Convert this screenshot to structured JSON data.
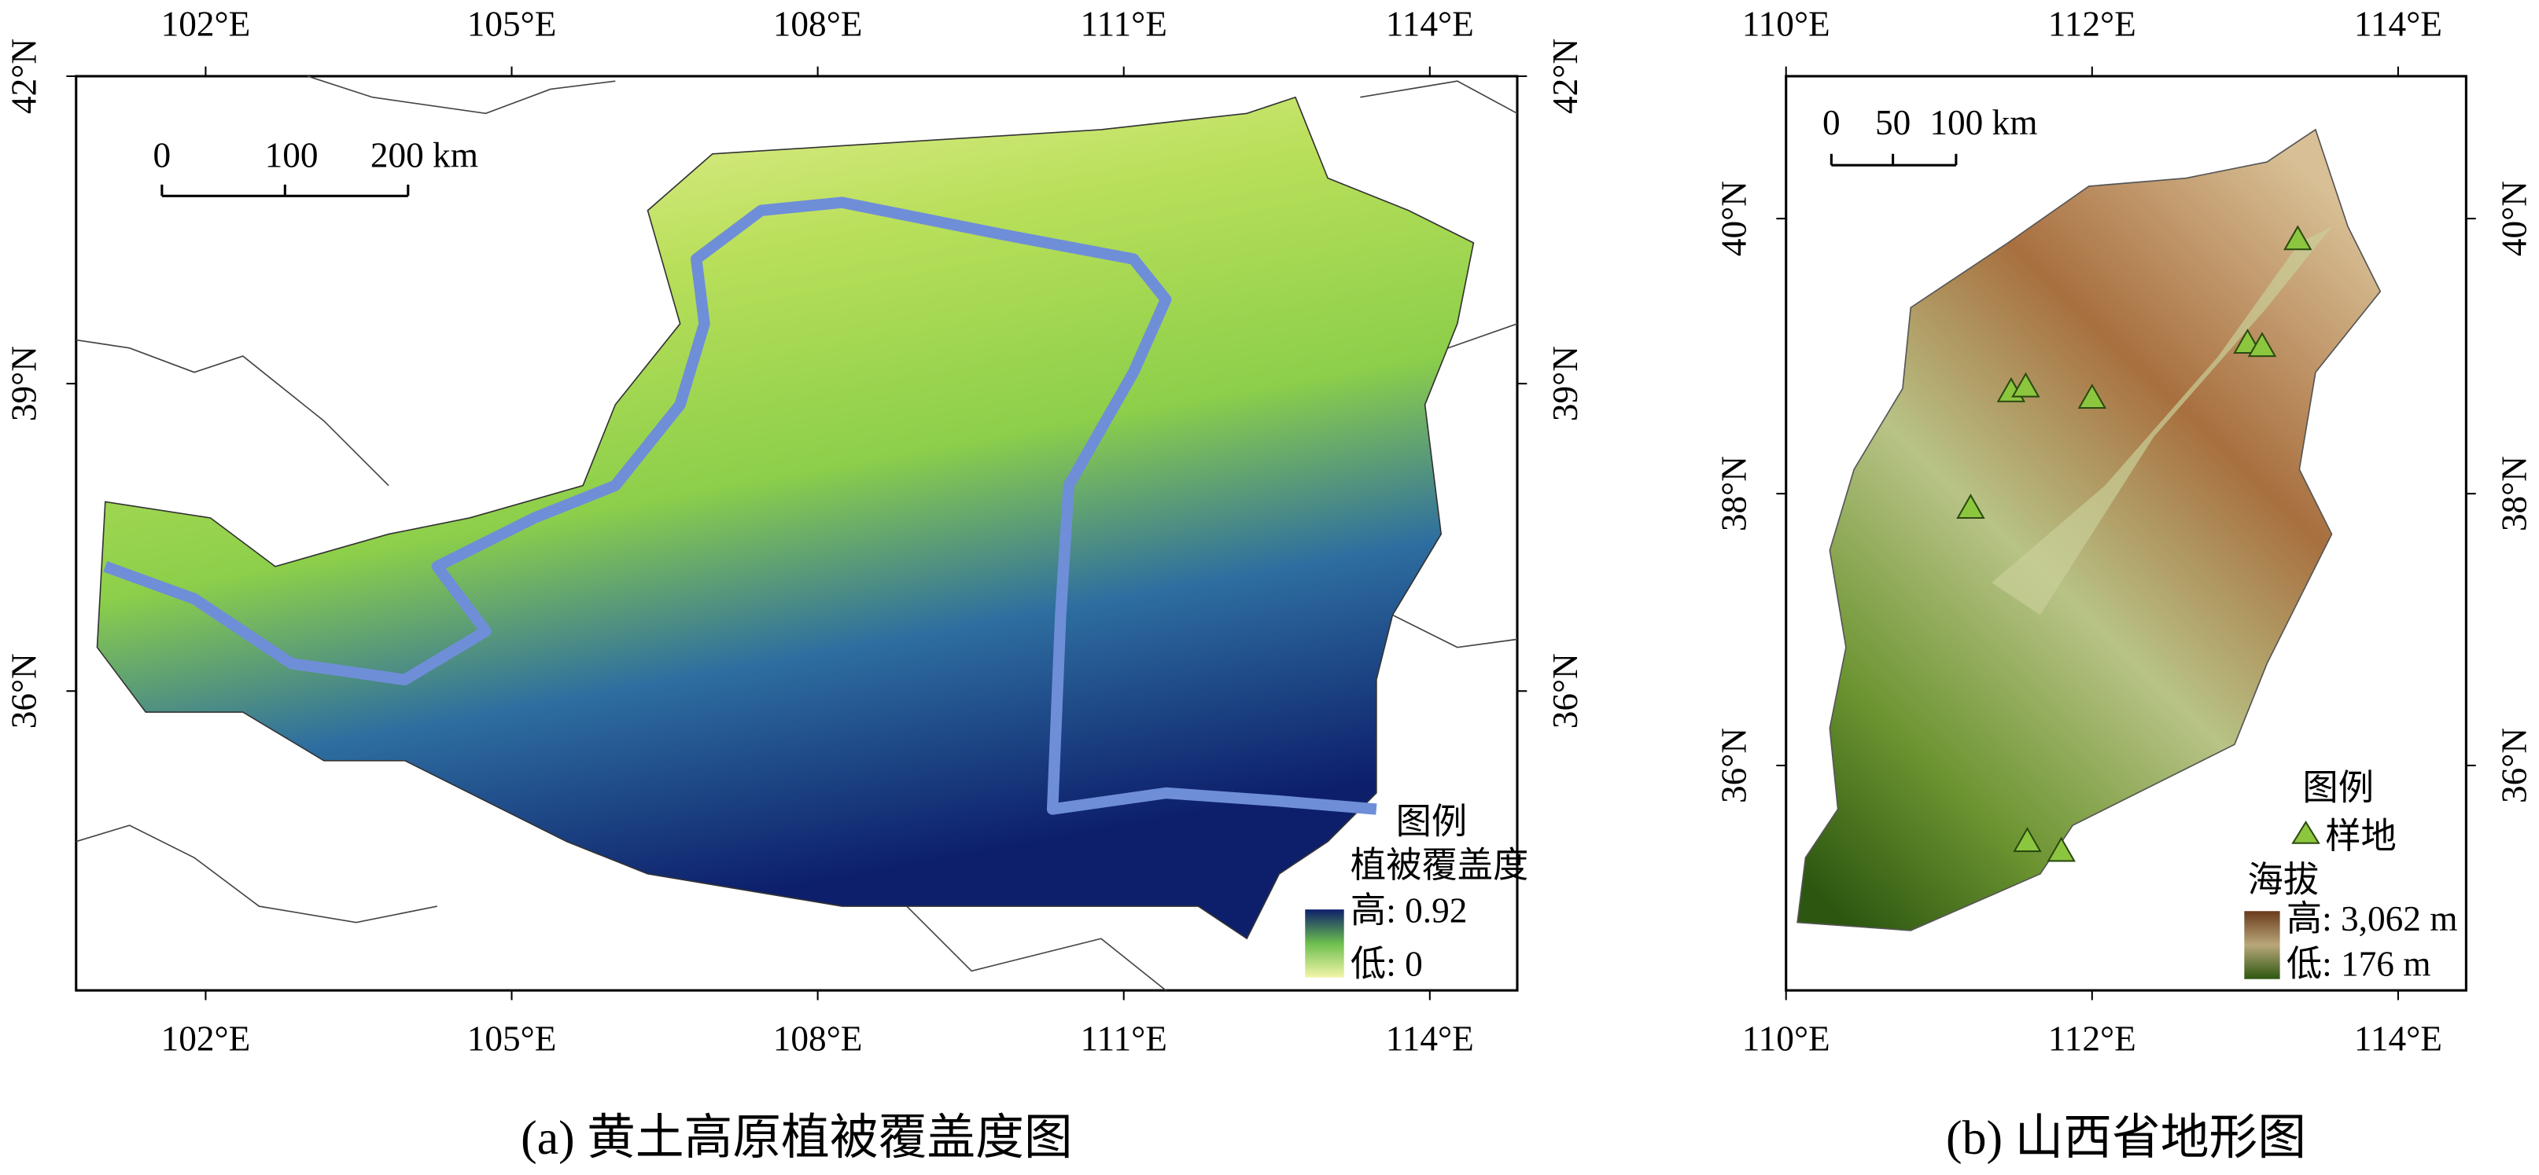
{
  "panel_a": {
    "caption": "(a) 黄土高原植被覆盖度图",
    "lon_labels": [
      "102°E",
      "105°E",
      "108°E",
      "111°E",
      "114°E"
    ],
    "lat_labels": [
      "42°N",
      "39°N",
      "36°N"
    ],
    "scale_bar": [
      "0",
      "100",
      "200 km"
    ],
    "legend": {
      "title": "图例",
      "heading": "植被覆盖度",
      "high": "高: 0.92",
      "low": "低: 0"
    }
  },
  "panel_b": {
    "caption": "(b) 山西省地形图",
    "lon_labels": [
      "110°E",
      "112°E",
      "114°E"
    ],
    "lat_labels": [
      "40°N",
      "38°N",
      "36°N"
    ],
    "scale_bar": [
      "0",
      "50",
      "100 km"
    ],
    "legend": {
      "title": "图例",
      "site": "样地",
      "heading": "海拔",
      "high": "高: 3,062 m",
      "low": "低: 176 m"
    }
  }
}
